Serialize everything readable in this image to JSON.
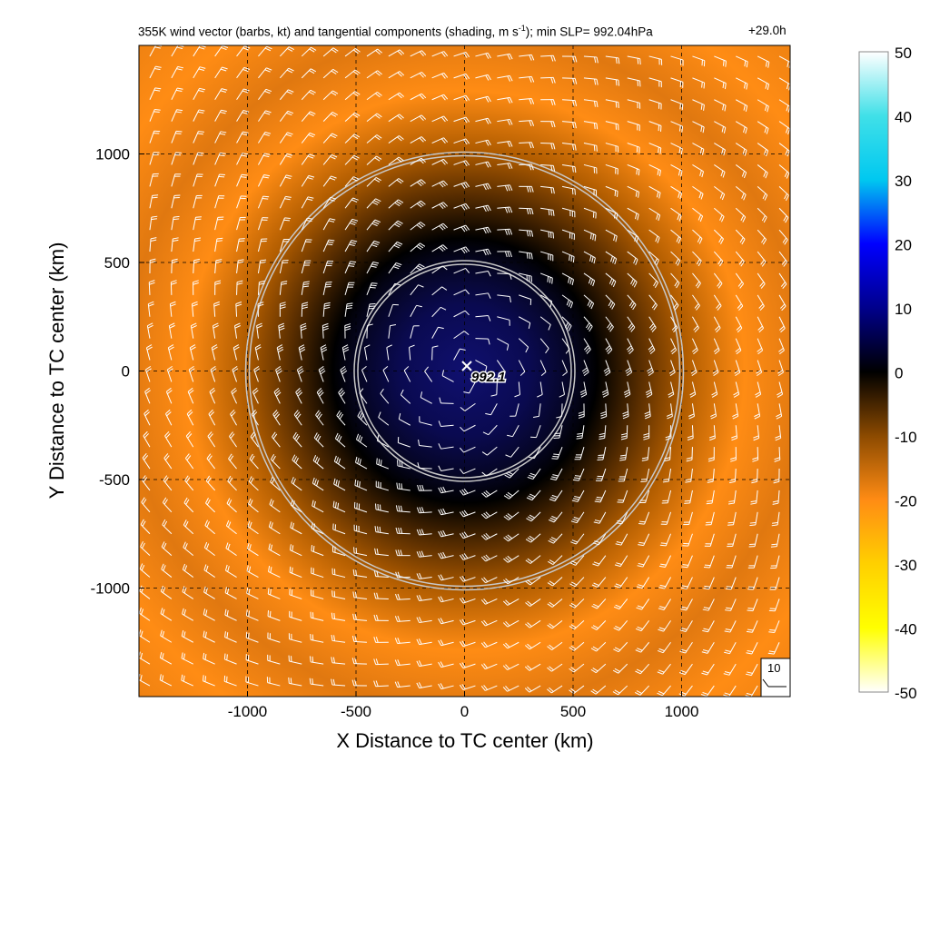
{
  "title": {
    "before_sup": "355K wind vector (barbs, kt) and tangential components (shading, m s",
    "sup": "-1",
    "after_sup": "); min SLP= 992.04hPa"
  },
  "time_label": "+29.0h",
  "reference_barb_label": "10",
  "center_label": "992.1",
  "colors": {
    "orange": "#ff8c14",
    "dark": "#000000",
    "blue": "#101070",
    "circle": "#c8c8c8",
    "barb": "#ffffff"
  },
  "chart_data": {
    "type": "heatmap",
    "xlabel": "X Distance to TC center (km)",
    "ylabel": "Y Distance to TC center (km)",
    "xlim": [
      -1500,
      1500
    ],
    "ylim": [
      -1500,
      1500
    ],
    "xticks": [
      -1000,
      -500,
      0,
      500,
      1000
    ],
    "yticks": [
      -1000,
      -500,
      0,
      500,
      1000
    ],
    "xtick_labels": [
      "-1000",
      "-500",
      "0",
      "500",
      "1000"
    ],
    "ytick_labels": [
      "-1000",
      "-500",
      "0",
      "500",
      "1000"
    ],
    "grid": true,
    "center": [
      0,
      0
    ],
    "center_marker": "x",
    "circles_radius_km": [
      500,
      1000
    ],
    "barb_spacing_km": 100,
    "colorbar": {
      "min": -50,
      "max": 50,
      "ticks": [
        50,
        40,
        30,
        20,
        10,
        0,
        -10,
        -20,
        -30,
        -40,
        -50
      ],
      "tick_labels": [
        "50",
        "40",
        "30",
        "20",
        "10",
        "0",
        "-10",
        "-20",
        "-30",
        "-40",
        "-50"
      ],
      "stops": [
        {
          "value": 50,
          "color": "#ffffff"
        },
        {
          "value": 40,
          "color": "#40e0e8"
        },
        {
          "value": 30,
          "color": "#00c8f0"
        },
        {
          "value": 20,
          "color": "#0000ff"
        },
        {
          "value": 10,
          "color": "#00008c"
        },
        {
          "value": 0,
          "color": "#000000"
        },
        {
          "value": -10,
          "color": "#8c4a00"
        },
        {
          "value": -20,
          "color": "#ff8c14"
        },
        {
          "value": -30,
          "color": "#ffd000"
        },
        {
          "value": -40,
          "color": "#ffff00"
        },
        {
          "value": -50,
          "color": "#ffffff"
        }
      ]
    }
  }
}
